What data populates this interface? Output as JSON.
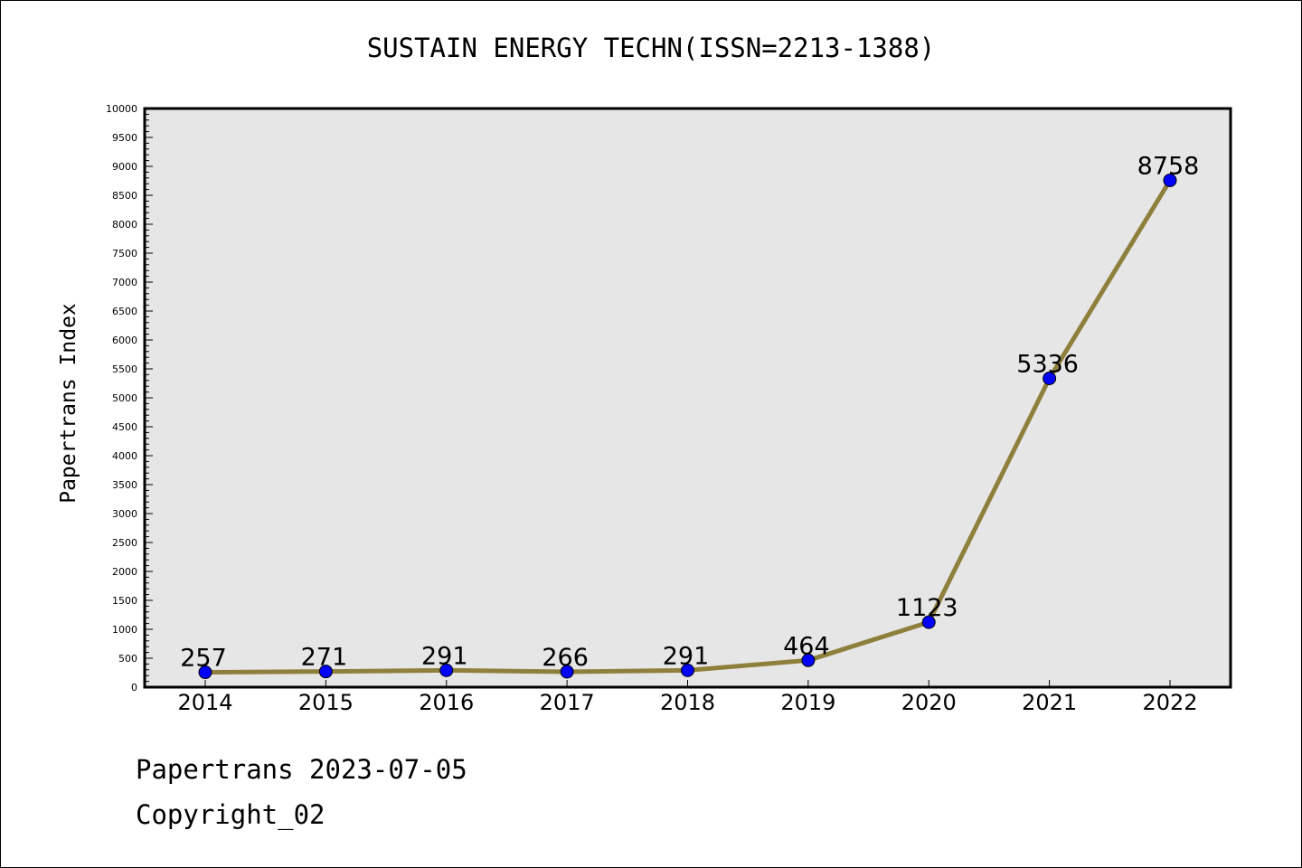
{
  "colors": {
    "plot_background": "#e6e6e6",
    "line": "#8f7f3c",
    "marker": "#0000ff",
    "axis": "#000000"
  },
  "footer": {
    "line1": "Papertrans 2023-07-05",
    "line2": "Copyright_02"
  },
  "chart_data": {
    "type": "line",
    "title": "SUSTAIN ENERGY TECHN(ISSN=2213-1388)",
    "xlabel": "",
    "ylabel": "Papertrans Index",
    "categories": [
      "2014",
      "2015",
      "2016",
      "2017",
      "2018",
      "2019",
      "2020",
      "2021",
      "2022"
    ],
    "values": [
      257,
      271,
      291,
      266,
      291,
      464,
      1123,
      5336,
      8758
    ],
    "data_labels": [
      "257",
      "271",
      "291",
      "266",
      "291",
      "464",
      "1123",
      "5336",
      "8758"
    ],
    "ylim": [
      0,
      10000
    ],
    "y_ticks": [
      "0",
      "500",
      "1000",
      "1500",
      "2000",
      "2500",
      "3000",
      "3500",
      "4000",
      "4500",
      "5000",
      "5500",
      "6000",
      "6500",
      "7000",
      "7500",
      "8000",
      "8500",
      "9000",
      "9500",
      "10000"
    ],
    "grid": false,
    "legend": "none"
  }
}
